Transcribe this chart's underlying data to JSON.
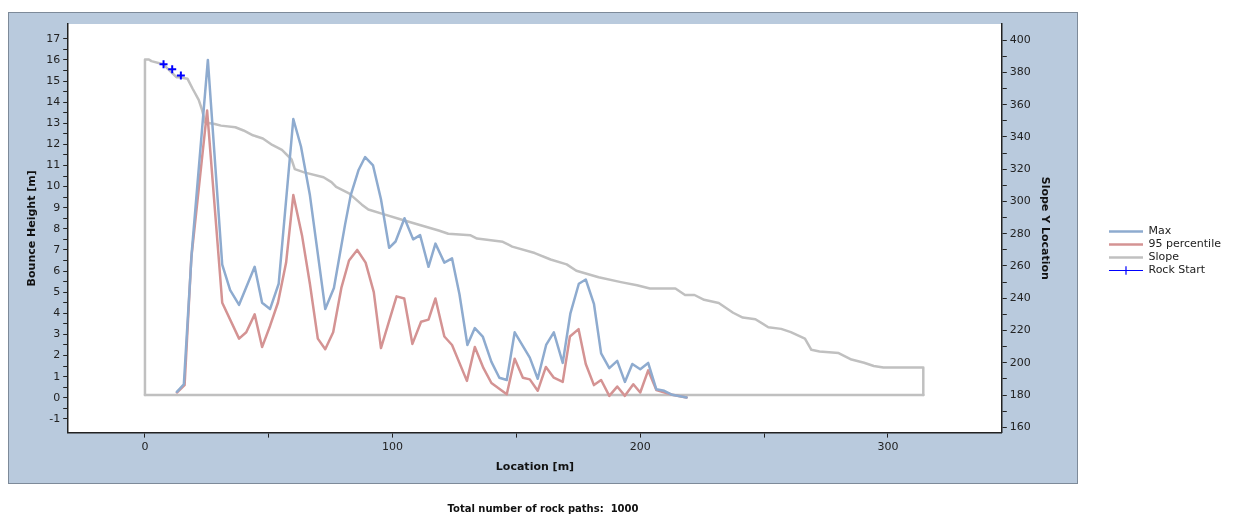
{
  "chart_data": {
    "type": "line",
    "xlabel": "Location [m]",
    "ylabel": "Bounce Height [m]",
    "y2label": "Slope Y Location",
    "annotations": [
      "Total number of rock paths:  1000"
    ],
    "xlim": [
      -31,
      346
    ],
    "xticks": [
      0,
      {
        "value": 50,
        "label": null
      },
      100,
      {
        "value": 150,
        "label": null
      },
      200,
      {
        "value": 250,
        "label": null
      },
      300
    ],
    "ylim": [
      -1.65,
      17.7
    ],
    "yticks": [
      -1,
      {
        "value": -0.5,
        "label": null
      },
      0,
      {
        "value": 0.5,
        "label": null
      },
      1,
      {
        "value": 1.5,
        "label": null
      },
      2,
      {
        "value": 2.5,
        "label": null
      },
      3,
      {
        "value": 3.5,
        "label": null
      },
      4,
      {
        "value": 4.5,
        "label": null
      },
      5,
      {
        "value": 5.5,
        "label": null
      },
      6,
      {
        "value": 6.5,
        "label": null
      },
      7,
      {
        "value": 7.5,
        "label": null
      },
      8,
      {
        "value": 8.5,
        "label": null
      },
      9,
      {
        "value": 9.5,
        "label": null
      },
      10,
      {
        "value": 10.5,
        "label": null
      },
      11,
      {
        "value": 11.5,
        "label": null
      },
      12,
      {
        "value": 12.5,
        "label": null
      },
      13,
      {
        "value": 13.5,
        "label": null
      },
      14,
      {
        "value": 14.5,
        "label": null
      },
      15,
      {
        "value": 15.5,
        "label": null
      },
      16,
      {
        "value": 16.5,
        "label": null
      },
      17
    ],
    "y2lim": [
      156.7,
      410
    ],
    "y2ticks": [
      160,
      {
        "value": 170,
        "label": null
      },
      180,
      {
        "value": 190,
        "label": null
      },
      200,
      {
        "value": 210,
        "label": null
      },
      220,
      {
        "value": 230,
        "label": null
      },
      240,
      {
        "value": 250,
        "label": null
      },
      260,
      {
        "value": 270,
        "label": null
      },
      280,
      {
        "value": 290,
        "label": null
      },
      300,
      {
        "value": 310,
        "label": null
      },
      320,
      {
        "value": 330,
        "label": null
      },
      340,
      {
        "value": 350,
        "label": null
      },
      360,
      {
        "value": 370,
        "label": null
      },
      380,
      {
        "value": 390,
        "label": null
      },
      400
    ],
    "grid": false,
    "legend": "right",
    "marker": "none",
    "series": [
      {
        "name": "Max",
        "color": "#8eabcf",
        "x": [
          12.9,
          15.7,
          18.9,
          25.4,
          31.2,
          34.4,
          38.0,
          44.3,
          47.3,
          50.5,
          54.0,
          59.9,
          63.0,
          66.6,
          72.8,
          76.3,
          80.8,
          83.1,
          86.3,
          88.9,
          92.1,
          95.3,
          98.6,
          101.2,
          104.8,
          108.3,
          111.1,
          114.5,
          117.3,
          120.9,
          124.0,
          127.0,
          130.2,
          133.2,
          136.4,
          139.9,
          143.1,
          146.1,
          149.3,
          155.4,
          158.6,
          162.0,
          165.1,
          168.7,
          171.8,
          175.2,
          178.0,
          181.3,
          184.2,
          187.5,
          190.7,
          193.8,
          196.8,
          200.0,
          203.2,
          206.5,
          209.7,
          212.9,
          218.7
        ],
        "values": [
          0.28,
          0.64,
          6.9,
          16.0,
          6.3,
          5.1,
          4.4,
          6.2,
          4.5,
          4.2,
          5.4,
          13.2,
          11.9,
          9.6,
          4.2,
          5.2,
          8.2,
          9.6,
          10.8,
          11.4,
          11.0,
          9.4,
          7.1,
          7.4,
          8.5,
          7.5,
          7.7,
          6.2,
          7.3,
          6.4,
          6.6,
          4.9,
          2.5,
          3.3,
          2.9,
          1.7,
          0.95,
          0.84,
          3.1,
          1.9,
          0.9,
          2.5,
          3.1,
          1.65,
          4.0,
          5.4,
          5.6,
          4.45,
          2.1,
          1.4,
          1.75,
          0.75,
          1.6,
          1.35,
          1.65,
          0.4,
          0.33,
          0.14,
          0.01
        ]
      },
      {
        "name": "95 percentile",
        "color": "#d49393",
        "x": [
          12.9,
          16.0,
          18.7,
          25.1,
          31.2,
          38.0,
          40.9,
          44.3,
          47.3,
          50.5,
          53.7,
          57.0,
          59.9,
          63.4,
          66.6,
          69.8,
          72.8,
          76.0,
          79.3,
          82.4,
          85.7,
          89.1,
          92.4,
          95.3,
          101.6,
          104.7,
          108.0,
          111.5,
          114.5,
          117.3,
          120.9,
          124.0,
          130.0,
          133.2,
          136.7,
          139.9,
          146.1,
          149.3,
          152.6,
          155.4,
          158.6,
          161.9,
          165.1,
          168.7,
          171.6,
          175.1,
          178.0,
          181.3,
          184.2,
          187.5,
          190.7,
          193.8,
          197.2,
          200.0,
          203.2,
          206.5,
          212.9,
          218.7
        ],
        "values": [
          0.25,
          0.6,
          6.6,
          13.6,
          4.5,
          2.8,
          3.1,
          3.95,
          2.4,
          3.4,
          4.5,
          6.4,
          9.6,
          7.7,
          5.4,
          2.8,
          2.3,
          3.1,
          5.2,
          6.5,
          7.0,
          6.4,
          5.0,
          2.35,
          4.8,
          4.7,
          2.55,
          3.6,
          3.7,
          4.7,
          2.9,
          2.5,
          0.8,
          2.4,
          1.4,
          0.7,
          0.17,
          1.85,
          0.95,
          0.87,
          0.33,
          1.46,
          0.95,
          0.75,
          2.9,
          3.25,
          1.6,
          0.6,
          0.84,
          0.09,
          0.53,
          0.09,
          0.64,
          0.25,
          1.3,
          0.37,
          0.14,
          0.01
        ]
      },
      {
        "name": "Slope",
        "color": "#c0c0c0",
        "axis": "y2",
        "x": [
          0,
          0,
          1.6,
          2.6,
          7.4,
          12.7,
          14.0,
          17.2,
          19.2,
          21.7,
          23.0,
          24.3,
          28.2,
          30.7,
          36.5,
          39.8,
          43.6,
          47.6,
          51.4,
          55.3,
          59.2,
          60.5,
          64.3,
          72.1,
          75.3,
          77.2,
          82.4,
          87.6,
          90.2,
          96.6,
          103.1,
          109.6,
          118.6,
          122.5,
          131.5,
          134.1,
          144.5,
          148.3,
          157.4,
          163.8,
          170.3,
          174.2,
          183.2,
          192.2,
          198.7,
          203.9,
          214.2,
          218.1,
          221.9,
          225.8,
          231.7,
          237.5,
          241.4,
          246.5,
          251.7,
          256.9,
          260.8,
          266.5,
          269.1,
          272.4,
          280.1,
          285.3,
          290.4,
          294.3,
          298.2,
          314.3,
          314.3
        ],
        "values": [
          180,
          388,
          388,
          387,
          385,
          377,
          377,
          376,
          370,
          363,
          357,
          349,
          348,
          347,
          346,
          344,
          341,
          339,
          335,
          332,
          326,
          320,
          318,
          315,
          312,
          309,
          305,
          298,
          295,
          292,
          289,
          286,
          282,
          280,
          279,
          277,
          275,
          272,
          268,
          264,
          261,
          257,
          253,
          250,
          248,
          246,
          246,
          242,
          242,
          239,
          237,
          231,
          228,
          227,
          222,
          221,
          219,
          215,
          208,
          207,
          206,
          202,
          200,
          198,
          197,
          197,
          180
        ]
      },
      {
        "color": "#c0c0c0",
        "axis": "y2",
        "x": [
          0,
          314.3
        ],
        "values": [
          180,
          180
        ]
      },
      {
        "name": "Rock Start",
        "type": "scatter",
        "marker": "cross",
        "color": "#0000ff",
        "axis": "y2",
        "x": [
          7.5,
          11.0,
          14.5
        ],
        "values": [
          385,
          382,
          378
        ]
      }
    ]
  }
}
